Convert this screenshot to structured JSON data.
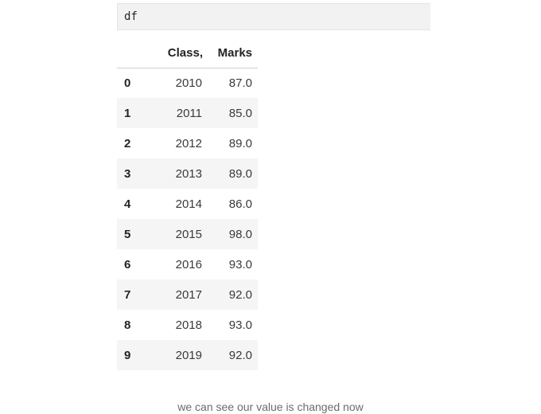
{
  "code_cell": {
    "code": "df"
  },
  "table": {
    "columns": [
      "Class,",
      "Marks"
    ],
    "rows": [
      {
        "index": "0",
        "class": "2010",
        "marks": "87.0"
      },
      {
        "index": "1",
        "class": "2011",
        "marks": "85.0"
      },
      {
        "index": "2",
        "class": "2012",
        "marks": "89.0"
      },
      {
        "index": "3",
        "class": "2013",
        "marks": "89.0"
      },
      {
        "index": "4",
        "class": "2014",
        "marks": "86.0"
      },
      {
        "index": "5",
        "class": "2015",
        "marks": "98.0"
      },
      {
        "index": "6",
        "class": "2016",
        "marks": "93.0"
      },
      {
        "index": "7",
        "class": "2017",
        "marks": "92.0"
      },
      {
        "index": "8",
        "class": "2018",
        "marks": "93.0"
      },
      {
        "index": "9",
        "class": "2019",
        "marks": "92.0"
      }
    ]
  },
  "caption": "we can see our value is changed now"
}
